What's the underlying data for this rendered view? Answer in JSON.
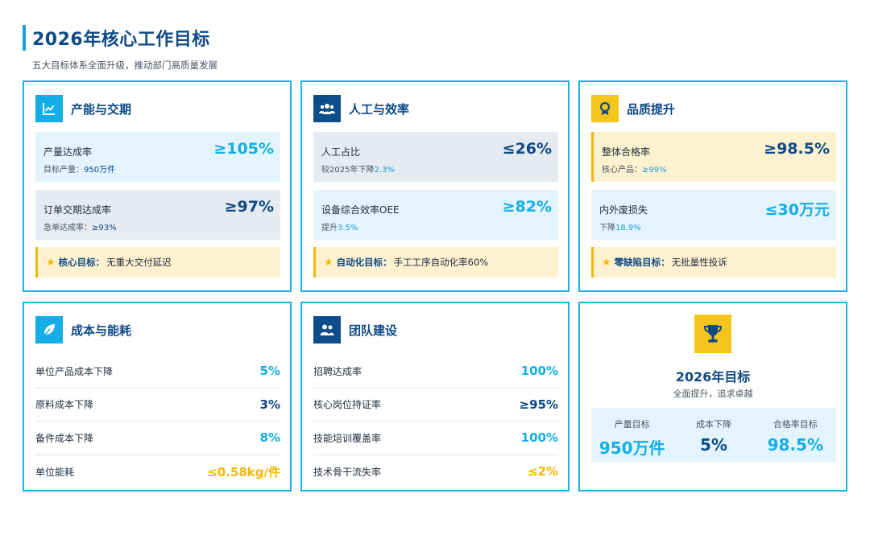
{
  "header": {
    "title": "2026年核心工作目标",
    "subtitle": "五大目标体系全面升级，推动部门高质量发展"
  },
  "cards": {
    "capacity": {
      "title": "产能与交期",
      "metrics": [
        {
          "label": "产量达成率",
          "value": "≥105%",
          "sub_prefix": "目标产量：",
          "sub_value": "950万件"
        },
        {
          "label": "订单交期达成率",
          "value": "≥97%",
          "sub_prefix": "急单达成率：",
          "sub_value": "≥93%"
        }
      ],
      "goal_key": "核心目标：",
      "goal_text": "无重大交付延迟"
    },
    "labor": {
      "title": "人工与效率",
      "metrics": [
        {
          "label": "人工占比",
          "value": "≤26%",
          "sub_prefix": "较2025年下降",
          "sub_value": "2.3%"
        },
        {
          "label": "设备综合效率OEE",
          "value": "≥82%",
          "sub_prefix": "提升",
          "sub_value": "3.5%"
        }
      ],
      "goal_key": "自动化目标：",
      "goal_text": "手工工序自动化率60%"
    },
    "quality": {
      "title": "品质提升",
      "metrics": [
        {
          "label": "整体合格率",
          "value": "≥98.5%",
          "sub_prefix": "核心产品：",
          "sub_value": "≥99%"
        },
        {
          "label": "内外废损失",
          "value": "≤30万元",
          "sub_prefix": "下降",
          "sub_value": "18.9%"
        }
      ],
      "goal_key": "零缺陷目标：",
      "goal_text": "无批量性投诉"
    },
    "cost": {
      "title": "成本与能耗",
      "rows": [
        {
          "label": "单位产品成本下降",
          "value": "5%"
        },
        {
          "label": "原料成本下降",
          "value": "3%"
        },
        {
          "label": "备件成本下降",
          "value": "8%"
        },
        {
          "label": "单位能耗",
          "value": "≤0.58kg/件"
        }
      ]
    },
    "team": {
      "title": "团队建设",
      "rows": [
        {
          "label": "招聘达成率",
          "value": "100%"
        },
        {
          "label": "核心岗位持证率",
          "value": "≥95%"
        },
        {
          "label": "技能培训覆盖率",
          "value": "100%"
        },
        {
          "label": "技术骨干流失率",
          "value": "≤2%"
        }
      ]
    },
    "summary": {
      "title": "2026年目标",
      "subtitle": "全面提升，追求卓越",
      "stats": [
        {
          "label": "产量目标",
          "value": "950万件"
        },
        {
          "label": "成本下降",
          "value": "5%"
        },
        {
          "label": "合格率目标",
          "value": "98.5%"
        }
      ]
    }
  },
  "colors": {
    "accent_cyan": "#14aee6",
    "accent_navy": "#0e4a86",
    "accent_gold": "#f5b800",
    "card_border": "#1ab2e8"
  },
  "icons": {
    "capacity": "line-chart-icon",
    "labor": "people-group-icon",
    "quality": "award-ribbon-icon",
    "cost": "leaf-icon",
    "team": "team-icon",
    "summary": "trophy-icon",
    "goal": "star-icon"
  }
}
